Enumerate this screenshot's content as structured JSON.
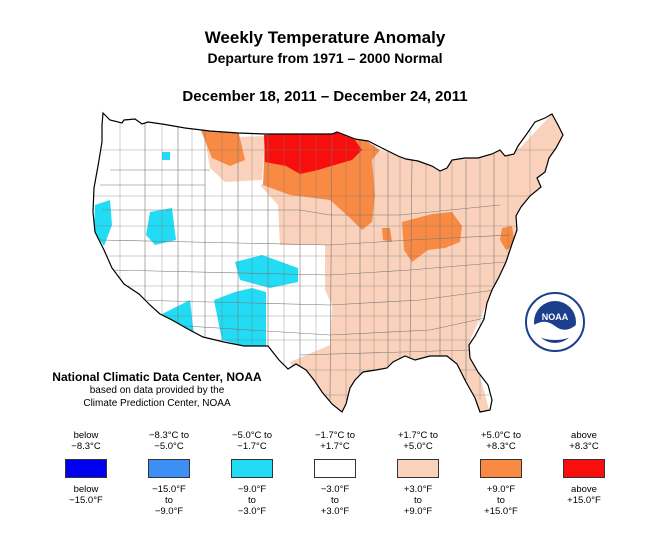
{
  "title": "Weekly Temperature Anomaly",
  "subtitle": "Departure from 1971 – 2000 Normal",
  "date_range": "December 18, 2011 – December 24, 2011",
  "credits": {
    "line1": "National Climatic Data Center, NOAA",
    "line2": "based on data provided by the",
    "line3": "Climate Prediction Center, NOAA"
  },
  "logo": {
    "text": "NOAA"
  },
  "legend": [
    {
      "celsius": "below\n−8.3°C",
      "fahrenheit": "below\n−15.0°F",
      "color": "#0000ee"
    },
    {
      "celsius": "−8.3°C to\n−5.0°C",
      "fahrenheit": "−15.0°F\nto\n−9.0°F",
      "color": "#3d8ff5"
    },
    {
      "celsius": "−5.0°C to\n−1.7°C",
      "fahrenheit": "−9.0°F\nto\n−3.0°F",
      "color": "#22dcf5"
    },
    {
      "celsius": "−1.7°C to\n+1.7°C",
      "fahrenheit": "−3.0°F\nto\n+3.0°F",
      "color": "#ffffff"
    },
    {
      "celsius": "+1.7°C to\n+5.0°C",
      "fahrenheit": "+3.0°F\nto\n+9.0°F",
      "color": "#fad2bc"
    },
    {
      "celsius": "+5.0°C to\n+8.3°C",
      "fahrenheit": "+9.0°F\nto\n+15.0°F",
      "color": "#f98a43"
    },
    {
      "celsius": "above\n+8.3°C",
      "fahrenheit": "above\n+15.0°F",
      "color": "#f90e0e"
    }
  ],
  "colors": {
    "outline": "#000000",
    "division_line": "#777777",
    "neutral": "#ffffff",
    "warm_light": "#fad2bc",
    "warm": "#f98a43",
    "hot": "#f90e0e",
    "cool": "#22dcf5"
  }
}
